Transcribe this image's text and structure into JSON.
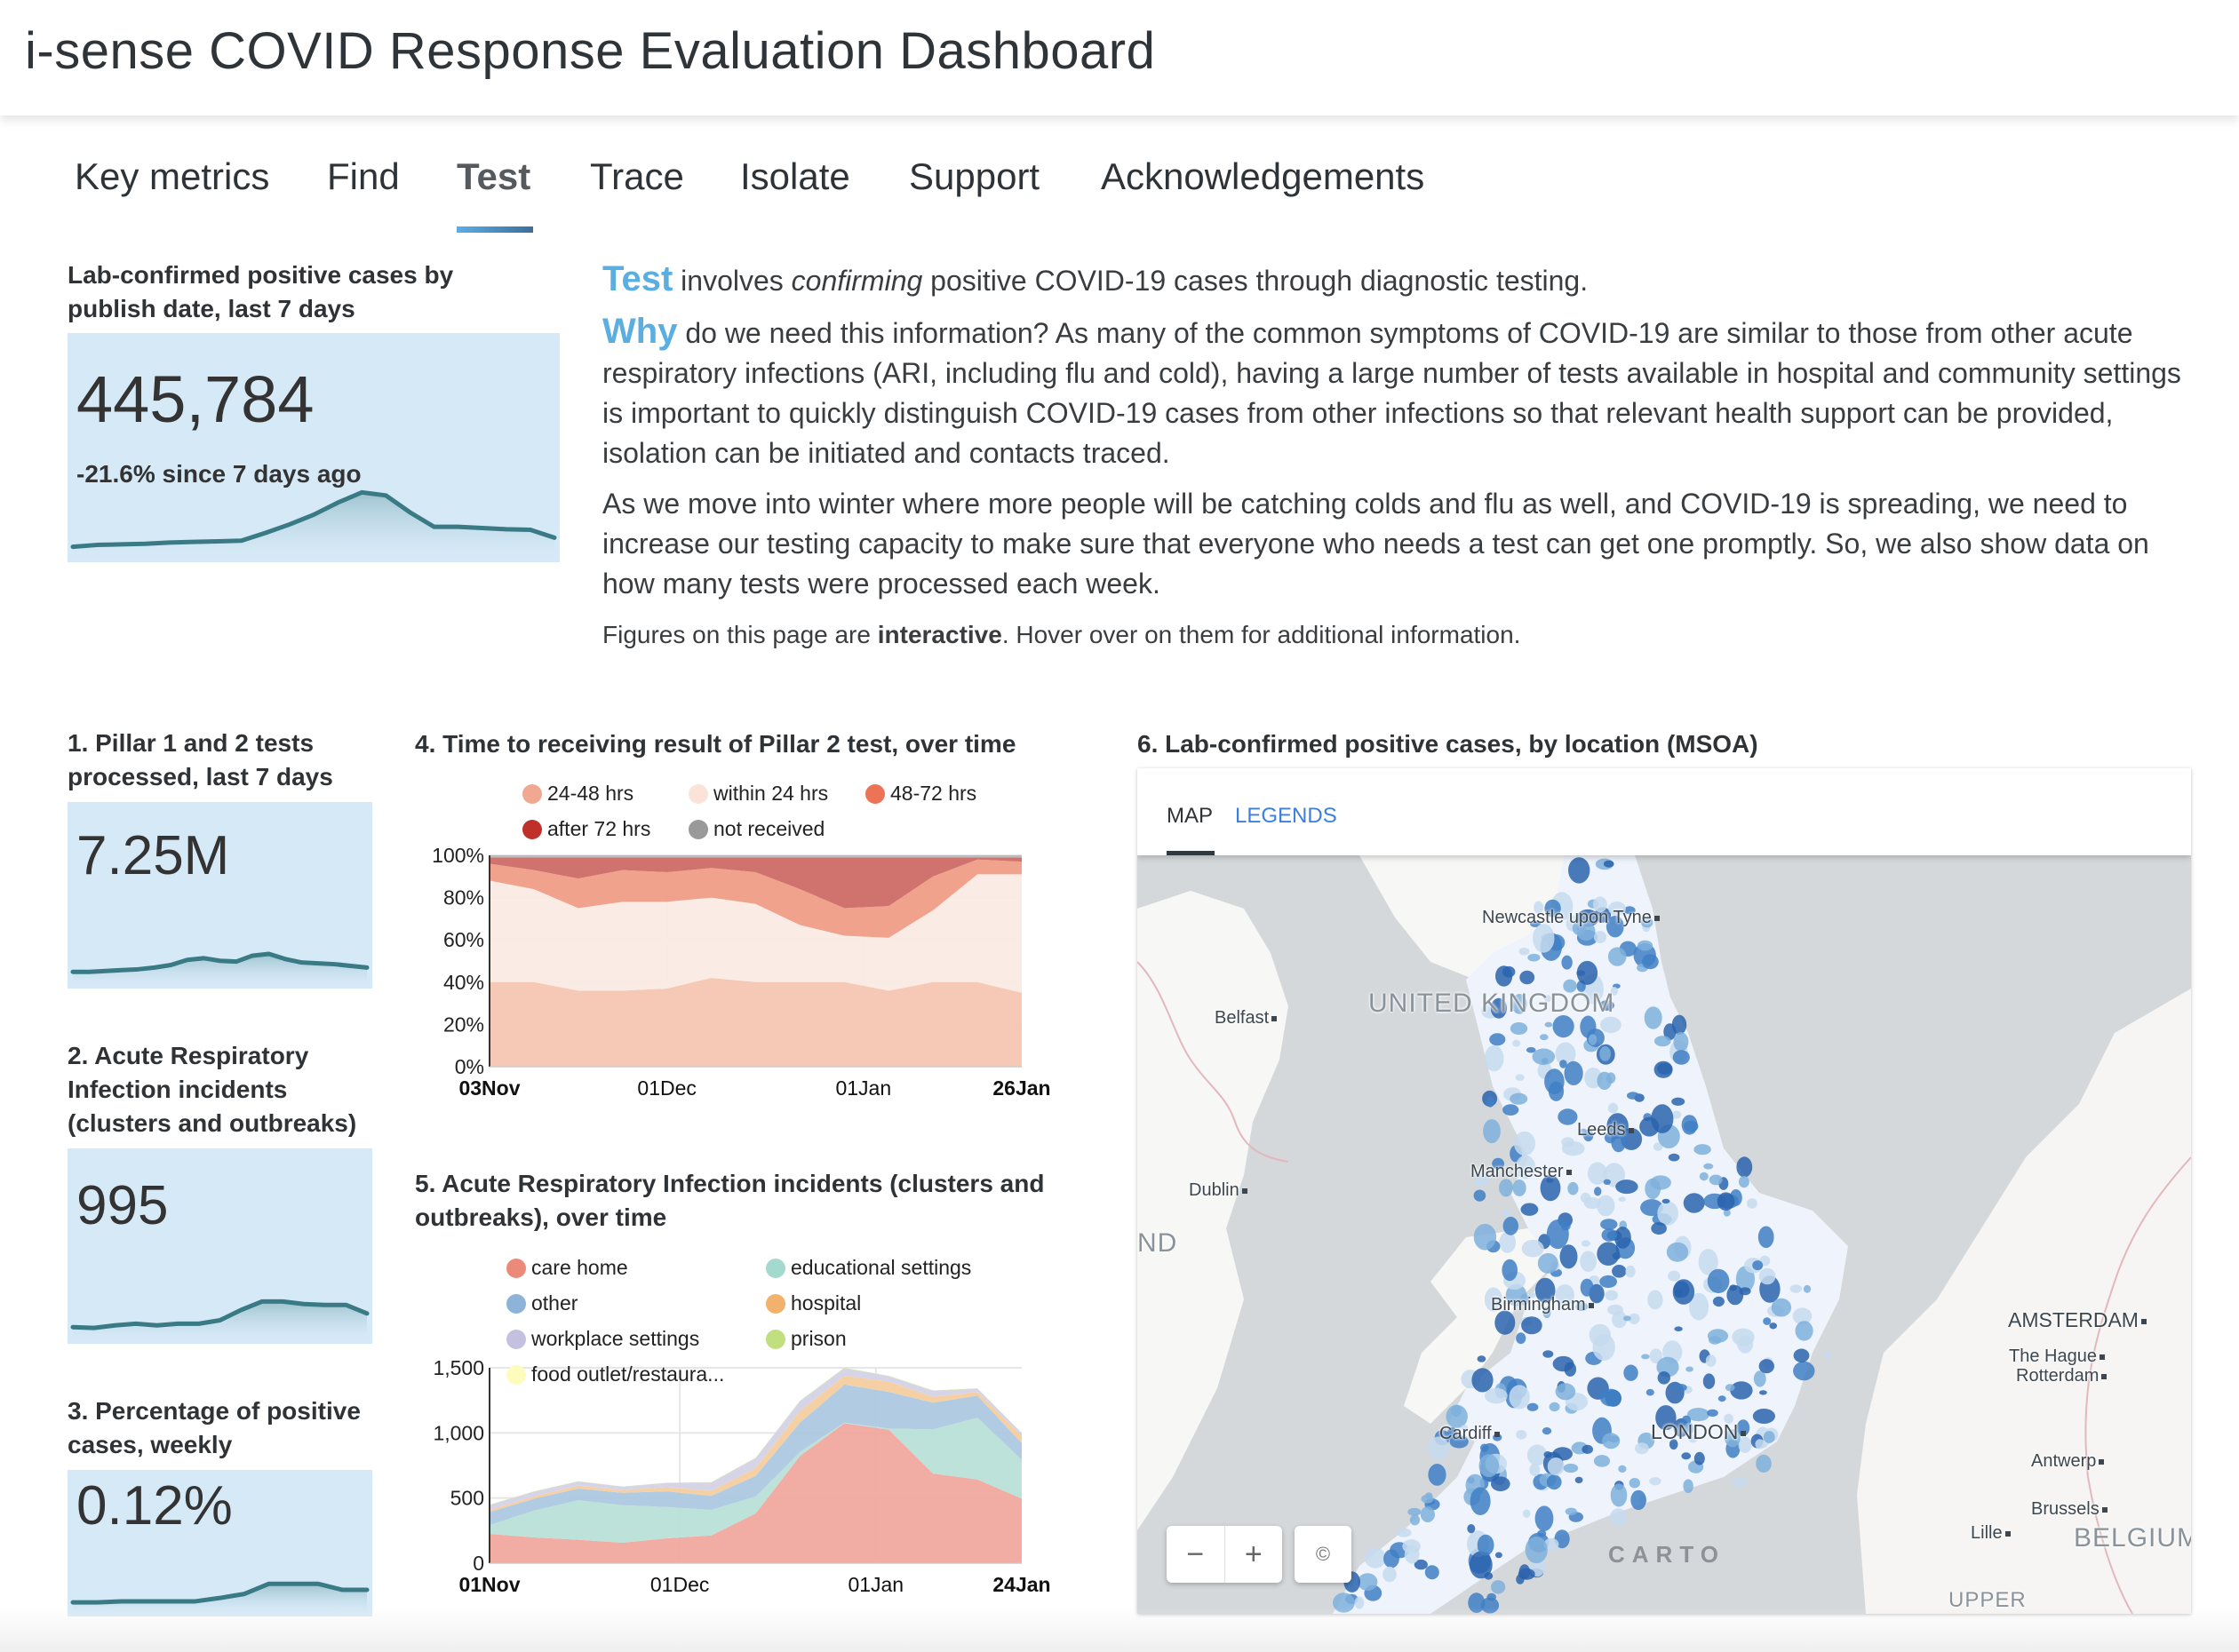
{
  "header": {
    "title": "i-sense COVID Response Evaluation Dashboard"
  },
  "nav": {
    "tabs": [
      {
        "label": "Key metrics",
        "active": false
      },
      {
        "label": "Find",
        "active": false
      },
      {
        "label": "Test",
        "active": true
      },
      {
        "label": "Trace",
        "active": false
      },
      {
        "label": "Isolate",
        "active": false
      },
      {
        "label": "Support",
        "active": false
      },
      {
        "label": "Acknowledgements",
        "active": false
      }
    ],
    "accent_gradient": [
      "#5aaee8",
      "#3b6f99"
    ]
  },
  "headline_metric": {
    "heading": "Lab-confirmed positive cases by publish date, last 7 days",
    "value": "445,784",
    "change": "-21.6% since 7 days ago",
    "sparkline": [
      0.05,
      0.08,
      0.09,
      0.1,
      0.12,
      0.13,
      0.14,
      0.15,
      0.28,
      0.42,
      0.58,
      0.78,
      0.95,
      0.9,
      0.62,
      0.38,
      0.38,
      0.36,
      0.34,
      0.33,
      0.2
    ]
  },
  "intro": {
    "p1_kw": "Test",
    "p1_a": " involves ",
    "p1_em": "confirming",
    "p1_b": " positive COVID-19 cases through diagnostic testing.",
    "p2_kw": "Why",
    "p2_text": " do we need this information? As many of the common symptoms of COVID-19 are similar to those from other acute respiratory infections (ARI, including flu and cold), having a large number of tests available in hospital and community settings is important to quickly distinguish COVID-19 cases from other infections so that relevant health support can be provided, isolation can be initiated and contacts traced.",
    "p3_text": "As we move into winter where more people will be catching colds and flu as well, and COVID-19 is spreading, we need to increase our testing capacity to make sure that everyone who needs a test can get one promptly. So, we also show data on how many tests were processed each week.",
    "note_a": "Figures on this page are ",
    "note_strong": "interactive",
    "note_b": ". Hover over on them for additional information."
  },
  "metric_cards": [
    {
      "heading": "1. Pillar 1 and 2 tests processed, last 7 days",
      "value": "7.25M",
      "sparkline": [
        0.1,
        0.1,
        0.12,
        0.14,
        0.16,
        0.2,
        0.26,
        0.38,
        0.42,
        0.36,
        0.34,
        0.48,
        0.52,
        0.4,
        0.32,
        0.3,
        0.28,
        0.24,
        0.2
      ]
    },
    {
      "heading": "2. Acute Respiratory Infection incidents (clusters and outbreaks)",
      "value": "995",
      "sparkline": [
        0.1,
        0.08,
        0.14,
        0.18,
        0.14,
        0.18,
        0.18,
        0.26,
        0.5,
        0.7,
        0.7,
        0.64,
        0.62,
        0.62,
        0.42
      ]
    },
    {
      "heading": "3. Percentage of positive cases, weekly",
      "value": "0.12%",
      "sparkline": [
        0.05,
        0.05,
        0.08,
        0.08,
        0.08,
        0.08,
        0.18,
        0.3,
        0.6,
        0.6,
        0.6,
        0.42,
        0.42
      ]
    }
  ],
  "chart_data": [
    {
      "id": "chart4",
      "type": "area",
      "stacked": "percent",
      "title": "4. Time to receiving result of Pillar 2 test, over time",
      "x": [
        "03Nov",
        "10Nov",
        "17Nov",
        "24Nov",
        "01Dec",
        "08Dec",
        "15Dec",
        "22Dec",
        "29Dec",
        "05Jan",
        "12Jan",
        "19Jan",
        "26Jan"
      ],
      "x_ticks": [
        {
          "label": "03Nov",
          "index": 0,
          "bold": true
        },
        {
          "label": "01Dec",
          "index": 4,
          "bold": false
        },
        {
          "label": "01Jan",
          "index": 8.43,
          "bold": false
        },
        {
          "label": "26Jan",
          "index": 12,
          "bold": true
        }
      ],
      "y_ticks": [
        "0%",
        "20%",
        "40%",
        "60%",
        "80%",
        "100%"
      ],
      "ylim": [
        0,
        100
      ],
      "legend_position": "top",
      "series": [
        {
          "name": "24-48 hrs",
          "color": "#f5c6b2",
          "legend_color": "#f0a890",
          "values": [
            40,
            40,
            36,
            36,
            37,
            42,
            40,
            40,
            40,
            36,
            40,
            40,
            35
          ]
        },
        {
          "name": "within 24 hrs",
          "color": "#faeae3",
          "legend_color": "#fbe3d8",
          "values": [
            48,
            44,
            39,
            42,
            41,
            38,
            37,
            27,
            22,
            25,
            34,
            51,
            56
          ]
        },
        {
          "name": "48-72 hrs",
          "color": "#ef9d86",
          "legend_color": "#ec7355",
          "values": [
            8,
            9,
            14,
            15,
            14,
            14,
            15,
            17,
            13,
            15,
            16,
            7,
            6
          ]
        },
        {
          "name": "after 72 hrs",
          "color": "#cd6b66",
          "legend_color": "#c0302b",
          "values": [
            3,
            6,
            10,
            6,
            7,
            5,
            7,
            15,
            24,
            23,
            9,
            1,
            2
          ]
        },
        {
          "name": "not received",
          "color": "#b8b8b8",
          "legend_color": "#999999",
          "values": [
            1,
            1,
            1,
            1,
            1,
            1,
            1,
            1,
            1,
            1,
            1,
            1,
            1
          ]
        }
      ],
      "legend_order": [
        "24-48 hrs",
        "within 24 hrs",
        "48-72 hrs",
        "after 72 hrs",
        "not received"
      ]
    },
    {
      "id": "chart5",
      "type": "area",
      "stacked": "absolute",
      "title": "5. Acute Respiratory Infection incidents (clusters and outbreaks), over time",
      "x": [
        "01Nov",
        "08Nov",
        "15Nov",
        "22Nov",
        "29Nov",
        "06Dec",
        "13Dec",
        "20Dec",
        "27Dec",
        "03Jan",
        "10Jan",
        "17Jan",
        "24Jan"
      ],
      "x_ticks": [
        {
          "label": "01Nov",
          "index": 0,
          "bold": true
        },
        {
          "label": "01Dec",
          "index": 4.29,
          "bold": false
        },
        {
          "label": "01Jan",
          "index": 8.71,
          "bold": false
        },
        {
          "label": "24Jan",
          "index": 12,
          "bold": true
        }
      ],
      "y_ticks": [
        "0",
        "500",
        "1,000",
        "1,500"
      ],
      "ylim": [
        0,
        1500
      ],
      "legend_position": "top",
      "series": [
        {
          "name": "care home",
          "color": "#f0a99e",
          "legend_color": "#ec8a7a",
          "values": [
            225,
            198,
            180,
            157,
            191,
            213,
            382,
            823,
            1074,
            1025,
            688,
            643,
            495
          ]
        },
        {
          "name": "educational settings",
          "color": "#b8e0d8",
          "legend_color": "#a3dacd",
          "values": [
            67,
            206,
            303,
            288,
            240,
            196,
            130,
            31,
            5,
            9,
            339,
            474,
            298
          ]
        },
        {
          "name": "other",
          "color": "#adc8e0",
          "legend_color": "#8db3d8",
          "values": [
            101,
            90,
            90,
            95,
            120,
            108,
            158,
            225,
            292,
            281,
            205,
            169,
            128
          ]
        },
        {
          "name": "hospital",
          "color": "#f6cda0",
          "legend_color": "#f2b26e",
          "values": [
            16,
            18,
            23,
            22,
            33,
            38,
            60,
            90,
            68,
            79,
            45,
            29,
            57
          ]
        },
        {
          "name": "workplace settings",
          "color": "#d4d3e6",
          "legend_color": "#c3c1df",
          "values": [
            38,
            37,
            31,
            25,
            32,
            65,
            76,
            75,
            57,
            42,
            46,
            25,
            20
          ]
        },
        {
          "name": "prison",
          "color": "#c8e39a",
          "legend_color": "#c0e07f",
          "values": [
            2,
            2,
            2,
            2,
            2,
            2,
            3,
            3,
            4,
            3,
            3,
            2,
            2
          ]
        },
        {
          "name": "food outlet/restaura...",
          "color": "#fbfbc6",
          "legend_color": "#fdfcbc",
          "values": [
            1,
            1,
            1,
            1,
            1,
            1,
            1,
            1,
            1,
            1,
            1,
            1,
            1
          ]
        }
      ],
      "legend_order": [
        "care home",
        "educational settings",
        "other",
        "hospital",
        "workplace settings",
        "prison",
        "food outlet/restaura..."
      ]
    }
  ],
  "map": {
    "heading": "6. Lab-confirmed positive cases, by location (MSOA)",
    "tabs": [
      {
        "label": "MAP",
        "active": true
      },
      {
        "label": "LEGENDS",
        "active": false
      }
    ],
    "cities": [
      "Newcastle upon Tyne",
      "Belfast",
      "Leeds",
      "Manchester",
      "Dublin",
      "Birmingham",
      "Cardiff",
      "LONDON",
      "AMSTERDAM",
      "The Hague",
      "Rotterdam",
      "Antwerp",
      "Brussels",
      "Lille"
    ],
    "countries": [
      "UNITED KINGDOM",
      "ND",
      "BELGIUM",
      "UPPER"
    ],
    "controls": {
      "zoom_out": "−",
      "zoom_in": "+",
      "attribution": "©"
    },
    "attribution_logo": "CARTO",
    "choropleth_colors": [
      "#eef3fc",
      "#c6dbef",
      "#7fb0dc",
      "#3f7fc4",
      "#2a63ad"
    ]
  }
}
